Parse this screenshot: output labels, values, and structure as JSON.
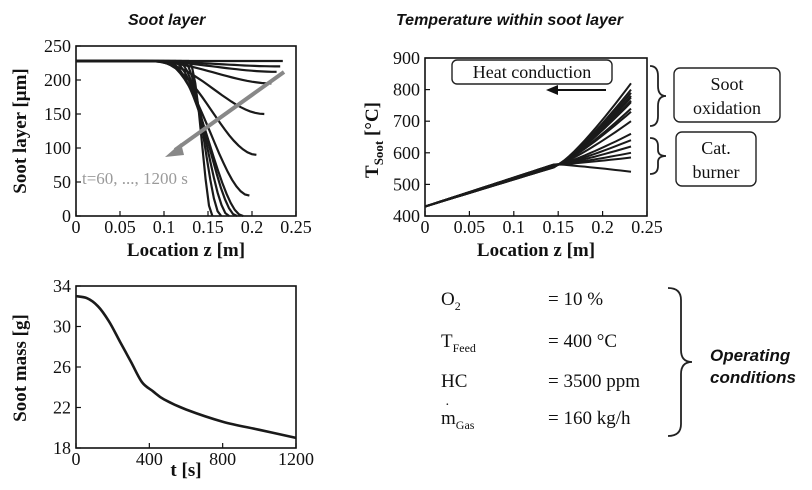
{
  "titles": {
    "left": "Soot layer",
    "right": "Temperature within soot layer"
  },
  "chart_data": [
    {
      "type": "line",
      "title": "Soot layer",
      "xlabel": "Location z [m]",
      "ylabel": "Soot  layer [μm]",
      "xlim": [
        0,
        0.25
      ],
      "ylim": [
        0,
        250
      ],
      "xticks": [
        "0",
        "0.05",
        "0.1",
        "0.15",
        "0.2",
        "0.25"
      ],
      "yticks": [
        "0",
        "50",
        "100",
        "150",
        "200",
        "250"
      ],
      "annotation": "t=60, ..., 1200 s",
      "curve_end_z": [
        0.235,
        0.232,
        0.228,
        0.222,
        0.214,
        0.205,
        0.197,
        0.19,
        0.183,
        0.174,
        0.165,
        0.155
      ],
      "curve_end_value": [
        228,
        220,
        212,
        195,
        150,
        90,
        30,
        0,
        0,
        0,
        0,
        0
      ],
      "curve_initial_value": 228
    },
    {
      "type": "line",
      "title": "Temperature within soot layer",
      "xlabel": "Location z [m]",
      "ylabel_main": "T",
      "ylabel_sub": "Soot",
      "ylabel_unit": " [°C]",
      "xlim": [
        0,
        0.25
      ],
      "ylim": [
        400,
        900
      ],
      "xticks": [
        "0",
        "0.05",
        "0.1",
        "0.15",
        "0.2",
        "0.25"
      ],
      "yticks": [
        "400",
        "500",
        "600",
        "700",
        "800",
        "900"
      ],
      "annotations": {
        "heat_conduction": "Heat conduction",
        "soot_oxidation": [
          "Soot",
          "oxidation"
        ],
        "cat_burner": [
          "Cat.",
          "burner"
        ]
      },
      "start": [
        0,
        430
      ],
      "z_end": 0.232,
      "end_values": [
        540,
        585,
        600,
        620,
        640,
        660,
        700,
        730,
        740,
        760,
        765,
        775,
        780,
        790,
        800,
        820
      ]
    },
    {
      "type": "line",
      "xlabel": "t [s]",
      "ylabel": "Soot mass [g]",
      "xlim": [
        0,
        1200
      ],
      "ylim": [
        18,
        34
      ],
      "xticks": [
        "0",
        "400",
        "800",
        "1200"
      ],
      "yticks": [
        "18",
        "22",
        "26",
        "30",
        "34"
      ],
      "x": [
        0,
        60,
        120,
        180,
        240,
        300,
        360,
        420,
        480,
        600,
        800,
        1000,
        1200
      ],
      "y": [
        33,
        32.8,
        32.0,
        30.5,
        28.5,
        26.5,
        24.5,
        23.6,
        22.8,
        21.8,
        20.6,
        19.8,
        19.0
      ]
    }
  ],
  "conditions": {
    "rows": [
      {
        "name_main": "O",
        "name_sub": "2",
        "value": "= 10 %"
      },
      {
        "name_main": "T",
        "name_sub": "Feed",
        "value": "= 400 °C"
      },
      {
        "name_main": "HC",
        "name_sub": "",
        "value": "= 3500 ppm"
      },
      {
        "name_main": "m",
        "name_sub": "Gas",
        "value": "= 160 kg/h"
      }
    ],
    "label_line1": "Operating",
    "label_line2": "conditions"
  }
}
